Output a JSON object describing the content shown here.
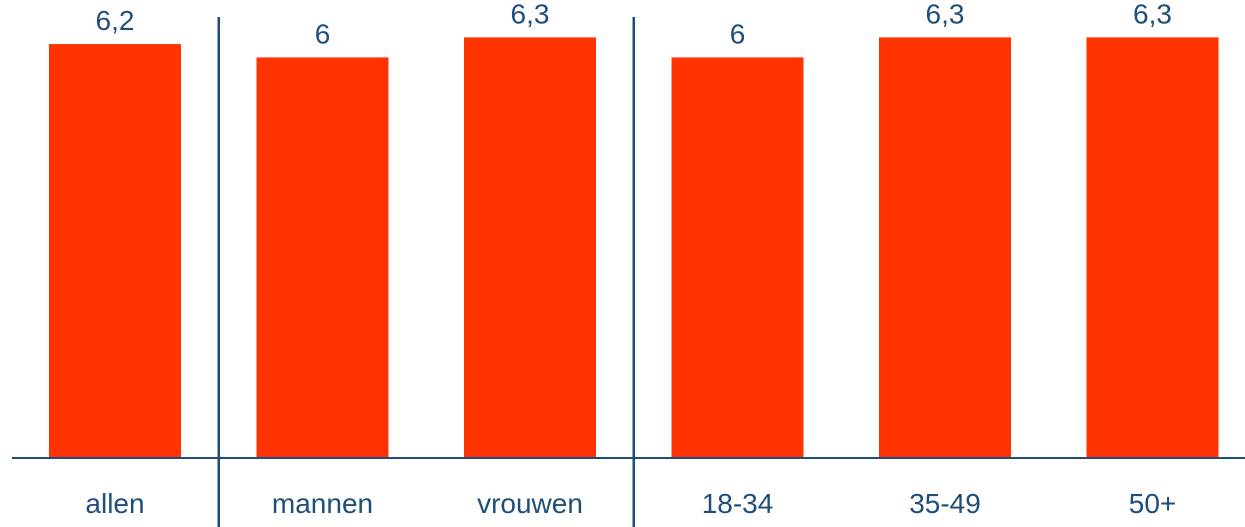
{
  "chart_data": {
    "type": "bar",
    "categories": [
      "allen",
      "mannen",
      "vrouwen",
      "18-34",
      "35-49",
      "50+"
    ],
    "values": [
      6.2,
      6,
      6.3,
      6,
      6.3,
      6.3
    ],
    "value_labels": [
      "6,2",
      "6",
      "6,3",
      "6",
      "6,3",
      "6,3"
    ],
    "title": "",
    "xlabel": "",
    "ylabel": "",
    "ylim": [
      0,
      6.86
    ],
    "grid": false,
    "legend": "none",
    "group_separators_after": [
      0,
      2
    ],
    "colors": {
      "bar": "#ff3300",
      "axis": "#1f4e79",
      "text": "#1f4e79"
    }
  }
}
